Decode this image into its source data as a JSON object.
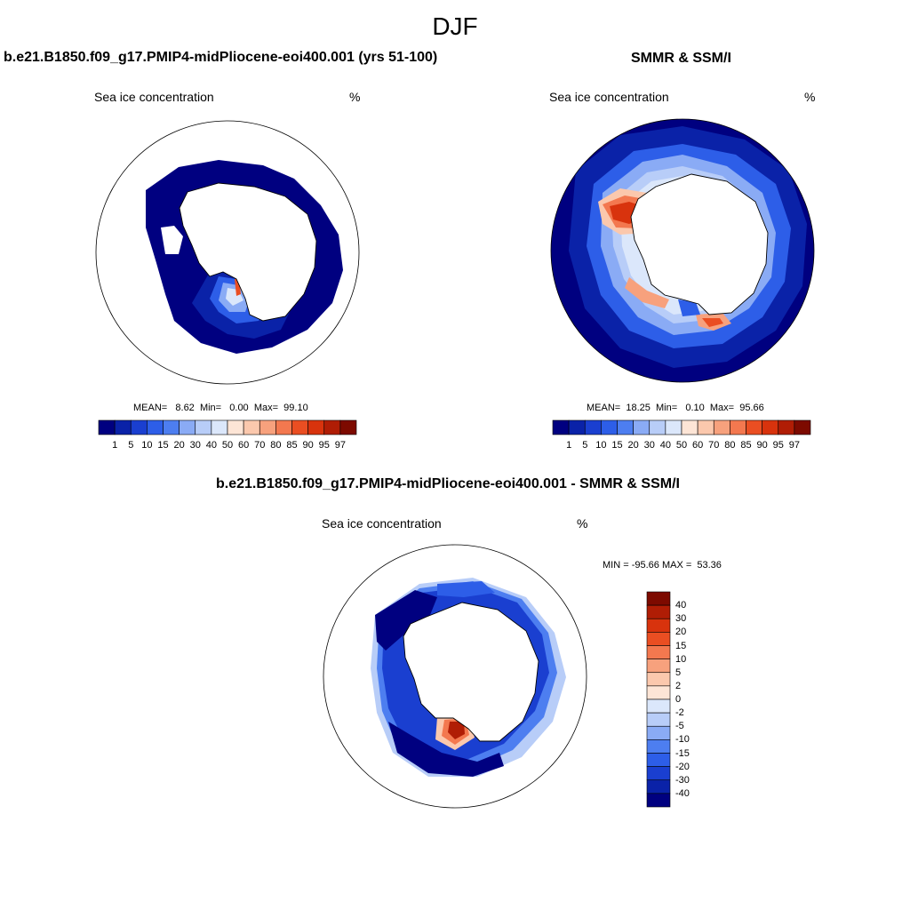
{
  "season": "DJF",
  "panels": [
    {
      "title": "b.e21.B1850.f09_g17.PMIP4-midPliocene-eoi400.001 (yrs 51-100)",
      "variable": "Sea ice concentration",
      "units": "%",
      "stats": {
        "mean": "8.62",
        "min": "0.00",
        "max": "99.10"
      },
      "stats_labels": {
        "mean": "MEAN=",
        "min": "Min=",
        "max": "Max="
      }
    },
    {
      "title": "SMMR & SSM/I",
      "variable": "Sea ice concentration",
      "units": "%",
      "stats": {
        "mean": "18.25",
        "min": "0.10",
        "max": "95.66"
      },
      "stats_labels": {
        "mean": "MEAN=",
        "min": "Min=",
        "max": "Max="
      }
    },
    {
      "title": "b.e21.B1850.f09_g17.PMIP4-midPliocene-eoi400.001 - SMMR & SSM/I",
      "variable": "Sea ice concentration",
      "units": "%",
      "stats_text": "MIN = -95.66 MAX =  53.36"
    }
  ],
  "colorbar_abs": {
    "levels": [
      "1",
      "5",
      "10",
      "15",
      "20",
      "30",
      "40",
      "50",
      "60",
      "70",
      "80",
      "85",
      "90",
      "95",
      "97"
    ],
    "colors": [
      "#000080",
      "#0a22a8",
      "#1a3fd0",
      "#2d5ee8",
      "#4d7ef0",
      "#8aabf5",
      "#b8cdf8",
      "#dbe7fb",
      "#fde5d6",
      "#fbc8ad",
      "#f7a17d",
      "#f3784f",
      "#ea4e22",
      "#d8330d",
      "#b01d05",
      "#7d0a00"
    ]
  },
  "colorbar_diff": {
    "levels": [
      "40",
      "30",
      "20",
      "15",
      "10",
      "5",
      "2",
      "0",
      "-2",
      "-5",
      "-10",
      "-15",
      "-20",
      "-30",
      "-40"
    ],
    "colors": [
      "#7d0a00",
      "#b01d05",
      "#d8330d",
      "#ea4e22",
      "#f3784f",
      "#f7a17d",
      "#fbc8ad",
      "#fde5d6",
      "#dbe7fb",
      "#b8cdf8",
      "#8aabf5",
      "#4d7ef0",
      "#2d5ee8",
      "#1a3fd0",
      "#0a22a8",
      "#000080"
    ]
  }
}
